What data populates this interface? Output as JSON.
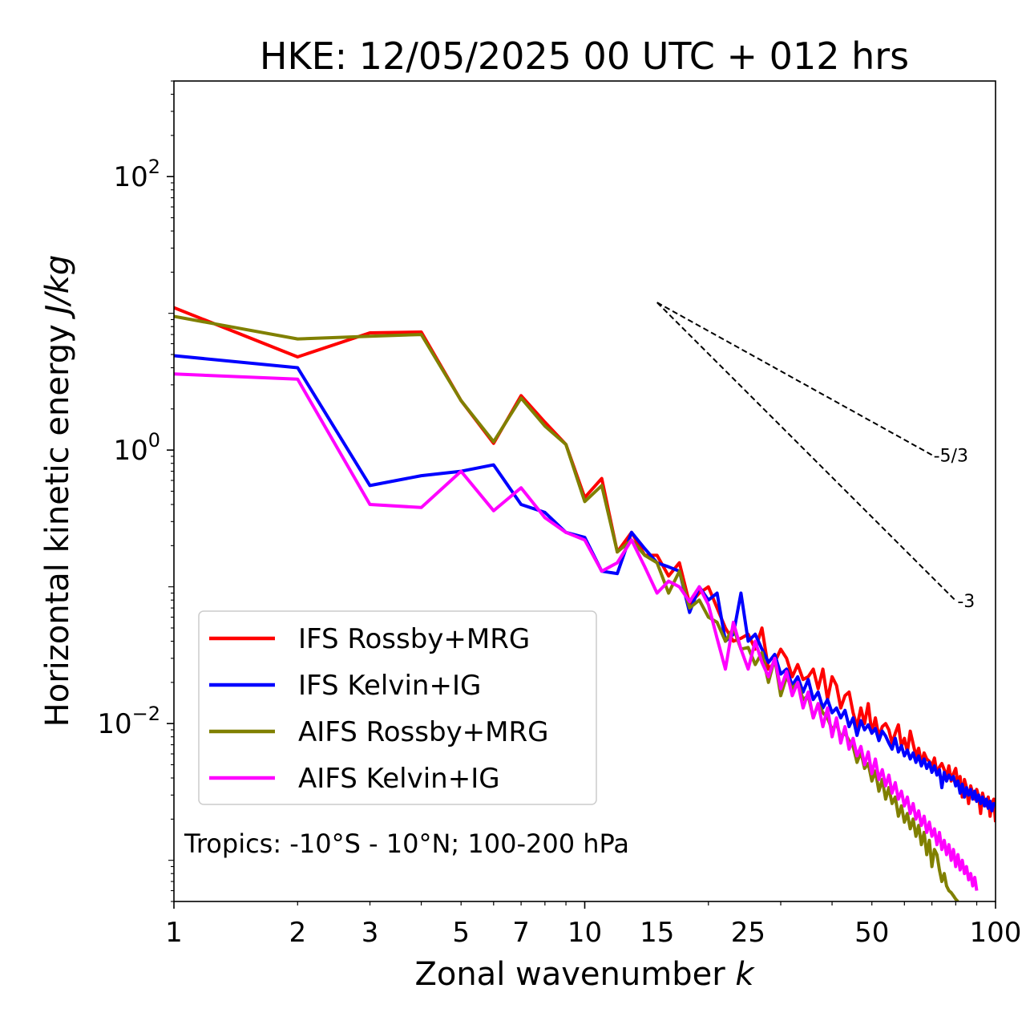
{
  "chart_data": {
    "type": "line",
    "title": "HKE: 12/05/2025 00 UTC + 012 hrs",
    "xlabel": "Zonal wavenumber",
    "xlabel_var": "k",
    "ylabel": "Horizontal kinetic energy",
    "ylabel_unit": "J/kg",
    "xscale": "log",
    "yscale": "log",
    "xlim": [
      1,
      100
    ],
    "ylim": [
      0.0005,
      500
    ],
    "xticks": [
      {
        "value": 1,
        "label": "1"
      },
      {
        "value": 2,
        "label": "2"
      },
      {
        "value": 3,
        "label": "3"
      },
      {
        "value": 5,
        "label": "5"
      },
      {
        "value": 7,
        "label": "7"
      },
      {
        "value": 10,
        "label": "10"
      },
      {
        "value": 15,
        "label": "15"
      },
      {
        "value": 25,
        "label": "25"
      },
      {
        "value": 50,
        "label": "50"
      },
      {
        "value": 100,
        "label": "100"
      }
    ],
    "yticks": [
      {
        "value": 0.01,
        "base": "10",
        "exp": "−2"
      },
      {
        "value": 1,
        "base": "10",
        "exp": "0"
      },
      {
        "value": 100,
        "base": "10",
        "exp": "2"
      }
    ],
    "annotation": "Tropics: -10°S - 10°N; 100-200 hPa",
    "legend_position": "lower-left",
    "grid": false,
    "series": [
      {
        "name": "IFS Rossby+MRG",
        "color": "#ff0000",
        "x": [
          1,
          2,
          3,
          4,
          5,
          6,
          7,
          8,
          9,
          10,
          11,
          12,
          13,
          14,
          15,
          16,
          17,
          18,
          19,
          20,
          21,
          22,
          23,
          24,
          25,
          26,
          27,
          28,
          29,
          30,
          31,
          32,
          33,
          34,
          35,
          36,
          37,
          38,
          39,
          40,
          41,
          42,
          43,
          44,
          45,
          46,
          47,
          48,
          49,
          50,
          51,
          52,
          53,
          54,
          55,
          56,
          57,
          58,
          59,
          60,
          61,
          62,
          63,
          64,
          65,
          66,
          67,
          68,
          69,
          70,
          71,
          72,
          73,
          74,
          75,
          76,
          77,
          78,
          79,
          80,
          81,
          82,
          83,
          84,
          85,
          86,
          87,
          88,
          89,
          90,
          91,
          92,
          93,
          94,
          95,
          96,
          97,
          98,
          99,
          100
        ],
        "y": [
          11,
          4.8,
          7.2,
          7.3,
          2.3,
          1.12,
          2.5,
          1.6,
          1.1,
          0.45,
          0.62,
          0.18,
          0.25,
          0.17,
          0.17,
          0.12,
          0.15,
          0.075,
          0.09,
          0.1,
          0.07,
          0.05,
          0.04,
          0.042,
          0.045,
          0.035,
          0.05,
          0.025,
          0.028,
          0.035,
          0.03,
          0.022,
          0.027,
          0.021,
          0.022,
          0.025,
          0.018,
          0.025,
          0.015,
          0.022,
          0.019,
          0.013,
          0.016,
          0.017,
          0.012,
          0.0095,
          0.013,
          0.01,
          0.014,
          0.0085,
          0.011,
          0.008,
          0.0095,
          0.01,
          0.009,
          0.0072,
          0.0085,
          0.0098,
          0.0068,
          0.0078,
          0.0062,
          0.0088,
          0.0071,
          0.0058,
          0.0066,
          0.0051,
          0.0061,
          0.0055,
          0.0053,
          0.0049,
          0.0056,
          0.0043,
          0.0048,
          0.0051,
          0.0046,
          0.0041,
          0.0049,
          0.0038,
          0.0043,
          0.0047,
          0.0036,
          0.0041,
          0.0029,
          0.0039,
          0.0034,
          0.0026,
          0.0035,
          0.0031,
          0.0028,
          0.0033,
          0.0029,
          0.0022,
          0.0031,
          0.0027,
          0.0025,
          0.0029,
          0.0021,
          0.0026,
          0.0028,
          0.0019
        ]
      },
      {
        "name": "IFS Kelvin+IG",
        "color": "#0000ff",
        "x": [
          1,
          2,
          3,
          4,
          5,
          6,
          7,
          8,
          9,
          10,
          11,
          12,
          13,
          14,
          15,
          16,
          17,
          18,
          19,
          20,
          21,
          22,
          23,
          24,
          25,
          26,
          27,
          28,
          29,
          30,
          31,
          32,
          33,
          34,
          35,
          36,
          37,
          38,
          39,
          40,
          41,
          42,
          43,
          44,
          45,
          46,
          47,
          48,
          49,
          50,
          51,
          52,
          53,
          54,
          55,
          56,
          57,
          58,
          59,
          60,
          61,
          62,
          63,
          64,
          65,
          66,
          67,
          68,
          69,
          70,
          71,
          72,
          73,
          74,
          75,
          76,
          77,
          78,
          79,
          80,
          81,
          82,
          83,
          84,
          85,
          86,
          87,
          88,
          89,
          90,
          91,
          92,
          93,
          94,
          95,
          96,
          97,
          98,
          99,
          100
        ],
        "y": [
          4.9,
          4.0,
          0.55,
          0.65,
          0.7,
          0.78,
          0.4,
          0.35,
          0.25,
          0.23,
          0.13,
          0.125,
          0.25,
          0.19,
          0.15,
          0.14,
          0.13,
          0.065,
          0.1,
          0.08,
          0.09,
          0.04,
          0.045,
          0.09,
          0.04,
          0.045,
          0.035,
          0.028,
          0.032,
          0.023,
          0.025,
          0.019,
          0.022,
          0.017,
          0.021,
          0.015,
          0.017,
          0.013,
          0.015,
          0.012,
          0.013,
          0.011,
          0.0125,
          0.0095,
          0.011,
          0.0082,
          0.0105,
          0.009,
          0.0098,
          0.0085,
          0.0092,
          0.0075,
          0.0088,
          0.0081,
          0.0072,
          0.0065,
          0.0078,
          0.0062,
          0.0069,
          0.0058,
          0.0064,
          0.0055,
          0.0061,
          0.0052,
          0.0058,
          0.0049,
          0.0055,
          0.0047,
          0.0052,
          0.0044,
          0.0049,
          0.0042,
          0.0046,
          0.0034,
          0.0044,
          0.0038,
          0.0042,
          0.0039,
          0.0041,
          0.0035,
          0.0038,
          0.0031,
          0.0036,
          0.0029,
          0.0034,
          0.003,
          0.0033,
          0.0028,
          0.0032,
          0.0027,
          0.003,
          0.0026,
          0.0029,
          0.0025,
          0.0028,
          0.0024,
          0.0027,
          0.0023,
          0.0026,
          0.0025
        ]
      },
      {
        "name": "AIFS Rossby+MRG",
        "color": "#808000",
        "x": [
          1,
          2,
          3,
          4,
          5,
          6,
          7,
          8,
          9,
          10,
          11,
          12,
          13,
          14,
          15,
          16,
          17,
          18,
          19,
          20,
          21,
          22,
          23,
          24,
          25,
          26,
          27,
          28,
          29,
          30,
          31,
          32,
          33,
          34,
          35,
          36,
          37,
          38,
          39,
          40,
          41,
          42,
          43,
          44,
          45,
          46,
          47,
          48,
          49,
          50,
          51,
          52,
          53,
          54,
          55,
          56,
          57,
          58,
          59,
          60,
          61,
          62,
          63,
          64,
          65,
          66,
          67,
          68,
          69,
          70,
          71,
          72,
          73,
          74,
          75,
          76,
          77,
          78,
          79,
          80,
          81
        ],
        "y": [
          9.5,
          6.5,
          6.8,
          7.0,
          2.3,
          1.15,
          2.4,
          1.5,
          1.1,
          0.42,
          0.55,
          0.18,
          0.22,
          0.17,
          0.15,
          0.09,
          0.13,
          0.07,
          0.08,
          0.06,
          0.055,
          0.04,
          0.05,
          0.035,
          0.036,
          0.027,
          0.033,
          0.02,
          0.03,
          0.016,
          0.022,
          0.018,
          0.02,
          0.015,
          0.016,
          0.011,
          0.014,
          0.012,
          0.011,
          0.009,
          0.01,
          0.008,
          0.0085,
          0.0075,
          0.0068,
          0.0052,
          0.0062,
          0.0047,
          0.0051,
          0.0038,
          0.0045,
          0.0032,
          0.0039,
          0.0028,
          0.0034,
          0.0026,
          0.0029,
          0.0021,
          0.0025,
          0.0019,
          0.0022,
          0.0017,
          0.002,
          0.0015,
          0.0018,
          0.0013,
          0.0016,
          0.0011,
          0.0014,
          0.0009,
          0.0012,
          0.0011,
          0.00085,
          0.0007,
          0.0008,
          0.00065,
          0.0006,
          0.00058,
          0.00055,
          0.00052,
          0.0005
        ]
      },
      {
        "name": "AIFS Kelvin+IG",
        "color": "#ff00ff",
        "x": [
          1,
          2,
          3,
          4,
          5,
          6,
          7,
          8,
          9,
          10,
          11,
          12,
          13,
          14,
          15,
          16,
          17,
          18,
          19,
          20,
          21,
          22,
          23,
          24,
          25,
          26,
          27,
          28,
          29,
          30,
          31,
          32,
          33,
          34,
          35,
          36,
          37,
          38,
          39,
          40,
          41,
          42,
          43,
          44,
          45,
          46,
          47,
          48,
          49,
          50,
          51,
          52,
          53,
          54,
          55,
          56,
          57,
          58,
          59,
          60,
          61,
          62,
          63,
          64,
          65,
          66,
          67,
          68,
          69,
          70,
          71,
          72,
          73,
          74,
          75,
          76,
          77,
          78,
          79,
          80,
          81,
          82,
          83,
          84,
          85,
          86,
          87,
          88,
          89,
          90
        ],
        "y": [
          3.6,
          3.3,
          0.4,
          0.38,
          0.7,
          0.36,
          0.53,
          0.32,
          0.25,
          0.22,
          0.13,
          0.15,
          0.22,
          0.14,
          0.09,
          0.11,
          0.1,
          0.078,
          0.1,
          0.074,
          0.042,
          0.025,
          0.055,
          0.035,
          0.025,
          0.04,
          0.028,
          0.022,
          0.03,
          0.018,
          0.024,
          0.016,
          0.02,
          0.013,
          0.017,
          0.011,
          0.014,
          0.0095,
          0.013,
          0.008,
          0.011,
          0.0072,
          0.0095,
          0.0065,
          0.0078,
          0.0058,
          0.0068,
          0.005,
          0.0062,
          0.0043,
          0.0055,
          0.0039,
          0.0046,
          0.0035,
          0.0042,
          0.0031,
          0.0037,
          0.0028,
          0.0032,
          0.0025,
          0.0029,
          0.0022,
          0.0026,
          0.002,
          0.0023,
          0.0018,
          0.0021,
          0.0016,
          0.0019,
          0.0015,
          0.0017,
          0.0013,
          0.0016,
          0.0012,
          0.0014,
          0.0011,
          0.0013,
          0.001,
          0.0012,
          0.0009,
          0.0011,
          0.00085,
          0.001,
          0.0008,
          0.0009,
          0.00072,
          0.0008,
          0.00065,
          0.00075,
          0.0006
        ]
      }
    ],
    "reference_lines": [
      {
        "label": "-5/3",
        "slope": -1.6667,
        "x_start": 15,
        "y_start": 12.0,
        "x_end": 70
      },
      {
        "label": "-3",
        "slope": -3,
        "x_start": 15,
        "y_start": 12.0,
        "x_end": 80
      }
    ]
  }
}
